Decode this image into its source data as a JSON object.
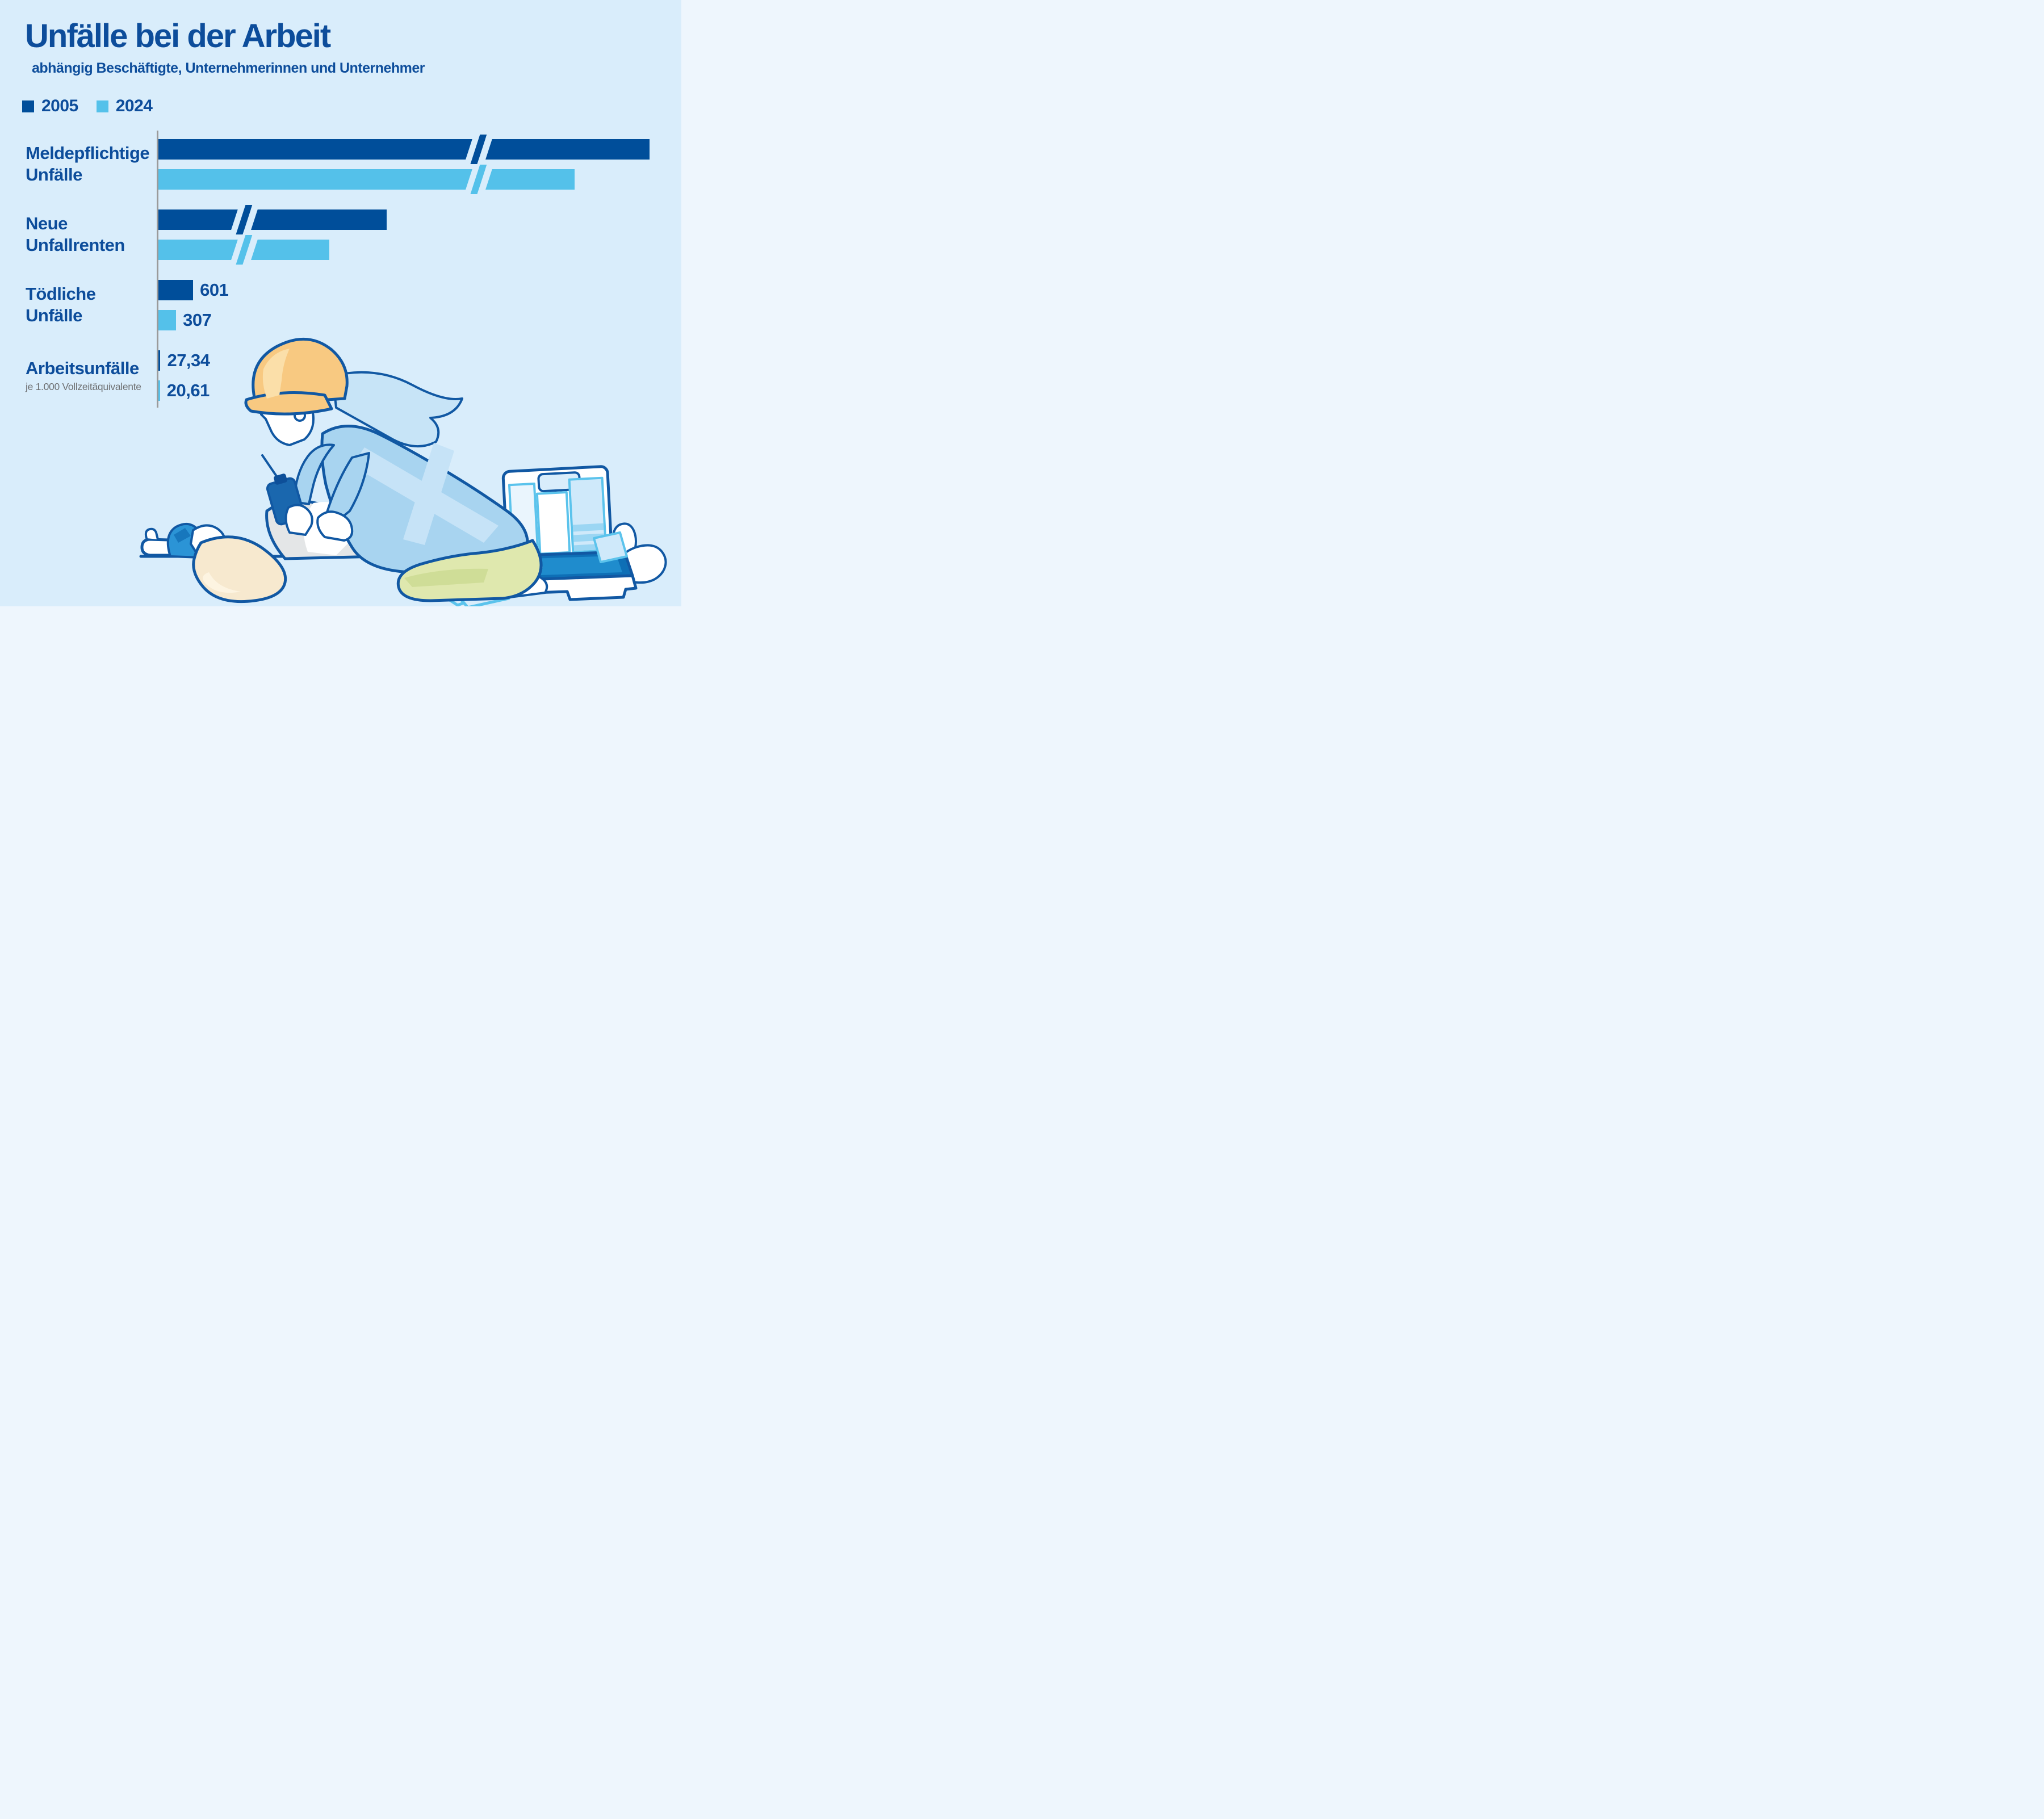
{
  "page": {
    "background_color": "#d9edfb"
  },
  "chart_data": {
    "type": "bar",
    "orientation": "horizontal",
    "title": "Unfälle bei der Arbeit",
    "subtitle": "abhängig Beschäftigte, Unternehmerinnen und Unternehmer",
    "legend_position": "top-left",
    "gridlines": false,
    "axis_color": "#9b9b9b",
    "categories": [
      {
        "id": "meldepflichtige-unfaelle",
        "label_lines": [
          "Meldepflichtige",
          "Unfälle"
        ],
        "sub_label": null,
        "axis_break": true,
        "break_pos_frac": 0.642
      },
      {
        "id": "neue-unfallrenten",
        "label_lines": [
          "Neue",
          "Unfallrenten"
        ],
        "sub_label": null,
        "axis_break": true,
        "break_pos_frac": 0.172
      },
      {
        "id": "toedliche-unfaelle",
        "label_lines": [
          "Tödliche",
          "Unfälle"
        ],
        "sub_label": null,
        "axis_break": false,
        "break_pos_frac": null
      },
      {
        "id": "arbeitsunfaelle",
        "label_lines": [
          "Arbeitsunfälle"
        ],
        "sub_label": "je 1.000 Vollzeitäquivalente",
        "axis_break": false,
        "break_pos_frac": null
      }
    ],
    "series": [
      {
        "name": "2005",
        "color": "#004e9a",
        "points": [
          {
            "value": null,
            "value_label": null,
            "bar_frac": 0.984
          },
          {
            "value": null,
            "value_label": null,
            "bar_frac": 0.457
          },
          {
            "value": 601,
            "value_label": "601",
            "bar_frac": 0.07
          },
          {
            "value": 27.34,
            "value_label": "27,34",
            "bar_frac": 0.0045
          }
        ]
      },
      {
        "name": "2024",
        "color": "#54c1ea",
        "points": [
          {
            "value": null,
            "value_label": null,
            "bar_frac": 0.834
          },
          {
            "value": null,
            "value_label": null,
            "bar_frac": 0.343
          },
          {
            "value": 307,
            "value_label": "307",
            "bar_frac": 0.036
          },
          {
            "value": 20.61,
            "value_label": "20,61",
            "bar_frac": 0.0037
          }
        ]
      }
    ]
  },
  "illustration": {
    "description": "First-aid scene: worker with orange hard hat and walkie-talkie kneels over a collapsed person lying on the ground; open first-aid case with supplies, two wrappers on the ground",
    "colors": {
      "outline": "#1158a3",
      "hard_hat": "#f8c981",
      "shirt": "#a8d4f0",
      "pants": "#dfe8ae",
      "victim_shirt": "#e4e6e7",
      "beige": "#f7e9cf",
      "kit_interior": "#0e6fb6",
      "kit_accent": "#5bc3ec"
    }
  }
}
